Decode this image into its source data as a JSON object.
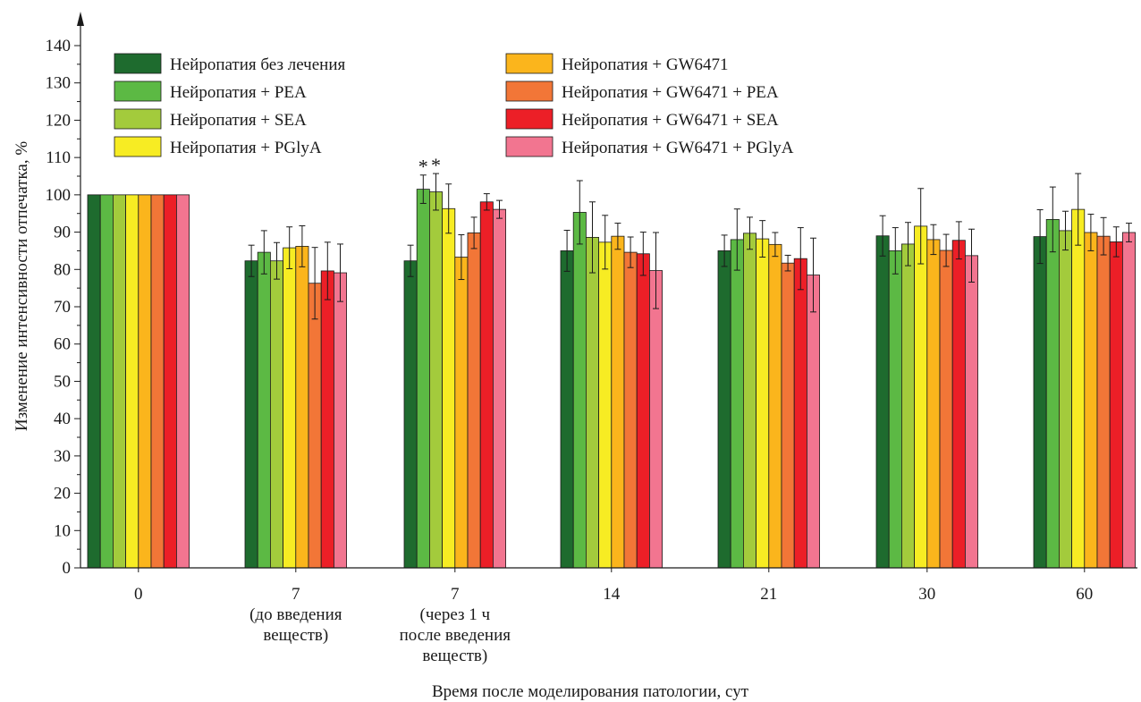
{
  "chart_data": {
    "type": "bar",
    "xlabel": "Время после моделирования патологии, сут",
    "ylabel": "Изменение интенсивности отпечатка, %",
    "ylim": [
      0,
      140
    ],
    "yticks": [
      0,
      10,
      20,
      30,
      40,
      50,
      60,
      70,
      80,
      90,
      100,
      110,
      120,
      130,
      140
    ],
    "grid": false,
    "legend_position": "top-left",
    "categories": [
      [
        "0"
      ],
      [
        "7",
        "(до введения",
        "веществ)"
      ],
      [
        "7",
        "(через 1 ч",
        "после введения",
        "веществ)"
      ],
      [
        "14"
      ],
      [
        "21"
      ],
      [
        "30"
      ],
      [
        "60"
      ]
    ],
    "series": [
      {
        "name": "Нейропатия без лечения",
        "color": "#1e6b2e",
        "values": [
          100,
          82.3,
          82.3,
          85,
          85,
          89,
          88.8
        ],
        "errors": [
          0,
          4.2,
          4.2,
          5.5,
          4.2,
          5.4,
          7.2
        ]
      },
      {
        "name": "Нейропатия + PEA",
        "color": "#5cb944",
        "values": [
          100,
          84.6,
          101.5,
          95.3,
          88,
          85,
          93.4
        ],
        "errors": [
          0,
          5.8,
          3.8,
          8.5,
          8.2,
          6.2,
          8.7
        ]
      },
      {
        "name": "Нейропатия + SEA",
        "color": "#a3cb3c",
        "values": [
          100,
          82.3,
          100.8,
          88.6,
          89.7,
          86.8,
          90.4
        ],
        "errors": [
          0,
          4.9,
          4.9,
          9.5,
          4.3,
          5.8,
          5.2
        ]
      },
      {
        "name": "Нейропатия + PGlyA",
        "color": "#f7ec23",
        "values": [
          100,
          85.8,
          96.3,
          87.3,
          88.2,
          91.6,
          96.1
        ],
        "errors": [
          0,
          5.6,
          6.6,
          7.2,
          4.9,
          10.1,
          9.6
        ]
      },
      {
        "name": "Нейропатия + GW6471",
        "color": "#fbb51c",
        "values": [
          100,
          86.2,
          83.3,
          88.9,
          86.7,
          88,
          89.9
        ],
        "errors": [
          0,
          5.5,
          6,
          3.5,
          3.2,
          4,
          4.9
        ]
      },
      {
        "name": "Нейропатия + GW6471 + PEA",
        "color": "#f27637",
        "values": [
          100,
          76.3,
          89.8,
          84.6,
          81.7,
          85.1,
          88.9
        ],
        "errors": [
          0,
          9.6,
          4.2,
          4.1,
          2.1,
          4.3,
          5
        ]
      },
      {
        "name": "Нейропатия + GW6471 + SEA",
        "color": "#ec1f27",
        "values": [
          100,
          79.6,
          98.1,
          84.2,
          82.9,
          87.8,
          87.4
        ],
        "errors": [
          0,
          7.7,
          2.2,
          5.8,
          8.3,
          5,
          4
        ]
      },
      {
        "name": "Нейропатия + GW6471 + PGlyA",
        "color": "#f27590",
        "values": [
          100,
          79.1,
          96.1,
          79.7,
          78.5,
          83.7,
          89.9
        ],
        "errors": [
          0,
          7.7,
          2.4,
          10.2,
          9.9,
          7.1,
          2.5
        ]
      }
    ],
    "annotations": [
      {
        "text": "*",
        "category_index": 2,
        "series_index": 1
      },
      {
        "text": "*",
        "category_index": 2,
        "series_index": 2
      }
    ]
  }
}
